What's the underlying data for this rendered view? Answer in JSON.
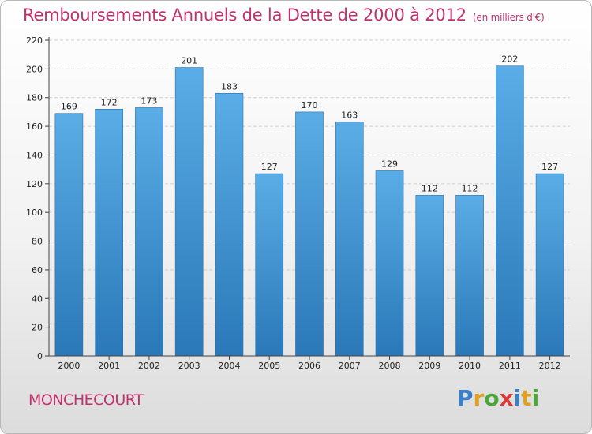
{
  "chart_data": {
    "type": "bar",
    "title": "Remboursements Annuels de la Dette de 2000 à 2012",
    "subtitle": "(en milliers d'€)",
    "categories": [
      "2000",
      "2001",
      "2002",
      "2003",
      "2004",
      "2005",
      "2006",
      "2007",
      "2008",
      "2009",
      "2010",
      "2011",
      "2012"
    ],
    "values": [
      169,
      172,
      173,
      201,
      183,
      127,
      170,
      163,
      129,
      112,
      112,
      202,
      127
    ],
    "ylim": [
      0,
      220
    ],
    "yticks": [
      0,
      20,
      40,
      60,
      80,
      100,
      120,
      140,
      160,
      180,
      200,
      220
    ],
    "grid": true,
    "bar_color_top": "#5aade6",
    "bar_color_bottom": "#2a78b8"
  },
  "commune": "MONCHECOURT",
  "logo": {
    "letters": [
      {
        "ch": "P",
        "color": "#3a7fc8"
      },
      {
        "ch": "r",
        "color": "#e0a020"
      },
      {
        "ch": "o",
        "color": "#4aa83a"
      },
      {
        "ch": "x",
        "color": "#d83a3a"
      },
      {
        "ch": "i",
        "color": "#3a7fc8"
      },
      {
        "ch": "t",
        "color": "#e0a020"
      },
      {
        "ch": "i",
        "color": "#4aa83a"
      }
    ]
  }
}
